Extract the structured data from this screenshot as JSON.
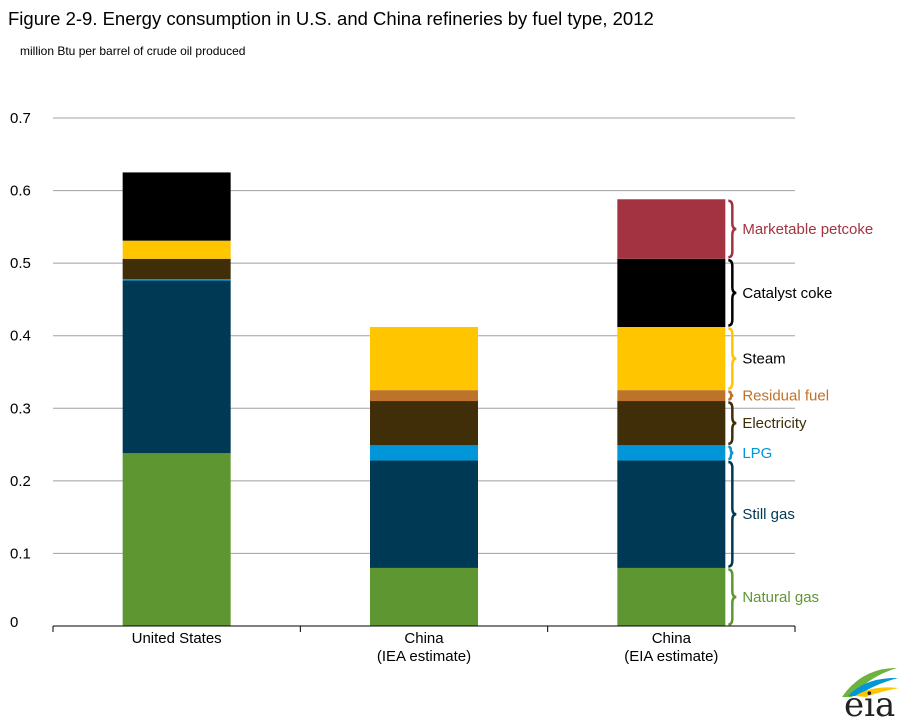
{
  "colors": {
    "Natural gas": "#5e9732",
    "Still gas": "#003953",
    "LPG": "#0096d7",
    "Electricity": "#3f2e07",
    "Residual fuel": "#bd732a",
    "Steam": "#ffc600",
    "Catalyst coke": "#000000",
    "Marketable petcoke": "#a33340",
    "grid": "#a0a0a0",
    "legend_text": {
      "Natural gas": "#5e9732",
      "Still gas": "#003953",
      "LPG": "#0096d7",
      "Electricity": "#3f2e07",
      "Residual fuel": "#bd732a",
      "Steam": "#000000",
      "Catalyst coke": "#000000",
      "Marketable petcoke": "#a33340"
    },
    "brace": {
      "Natural gas": "#5e9732",
      "Still gas": "#003953",
      "LPG": "#0096d7",
      "Electricity": "#3f2e07",
      "Residual fuel": "#bd732a",
      "Steam": "#ffc600",
      "Catalyst coke": "#000000",
      "Marketable petcoke": "#a33340"
    }
  },
  "chart_data": {
    "type": "bar",
    "stacked": true,
    "title": "Figure 2-9. Energy consumption in U.S. and China refineries by fuel type, 2012",
    "subtitle": "million Btu per barrel of crude oil produced",
    "xlabel": "",
    "ylabel": "million Btu per barrel of crude oil produced",
    "ylim": [
      0,
      0.7
    ],
    "yticks": [
      "0",
      "0.1",
      "0.2",
      "0.3",
      "0.4",
      "0.5",
      "0.6",
      "0.7"
    ],
    "ytick_values": [
      0,
      0.1,
      0.2,
      0.3,
      0.4,
      0.5,
      0.6,
      0.7
    ],
    "grid": true,
    "legend_position": "right",
    "categories": [
      [
        "United States"
      ],
      [
        "China",
        "(IEA estimate)"
      ],
      [
        "China",
        "(EIA estimate)"
      ]
    ],
    "series": [
      {
        "name": "Natural gas",
        "values": [
          0.238,
          0.08,
          0.08
        ]
      },
      {
        "name": "Still gas",
        "values": [
          0.238,
          0.148,
          0.148
        ]
      },
      {
        "name": "LPG",
        "values": [
          0.002,
          0.021,
          0.021
        ]
      },
      {
        "name": "Electricity",
        "values": [
          0.028,
          0.061,
          0.061
        ]
      },
      {
        "name": "Residual fuel",
        "values": [
          0.0,
          0.015,
          0.015
        ]
      },
      {
        "name": "Steam",
        "values": [
          0.025,
          0.087,
          0.087
        ]
      },
      {
        "name": "Catalyst coke",
        "values": [
          0.094,
          0.0,
          0.094
        ]
      },
      {
        "name": "Marketable petcoke",
        "values": [
          0.0,
          0.0,
          0.082
        ]
      }
    ]
  },
  "logo": {
    "text": "eia"
  }
}
